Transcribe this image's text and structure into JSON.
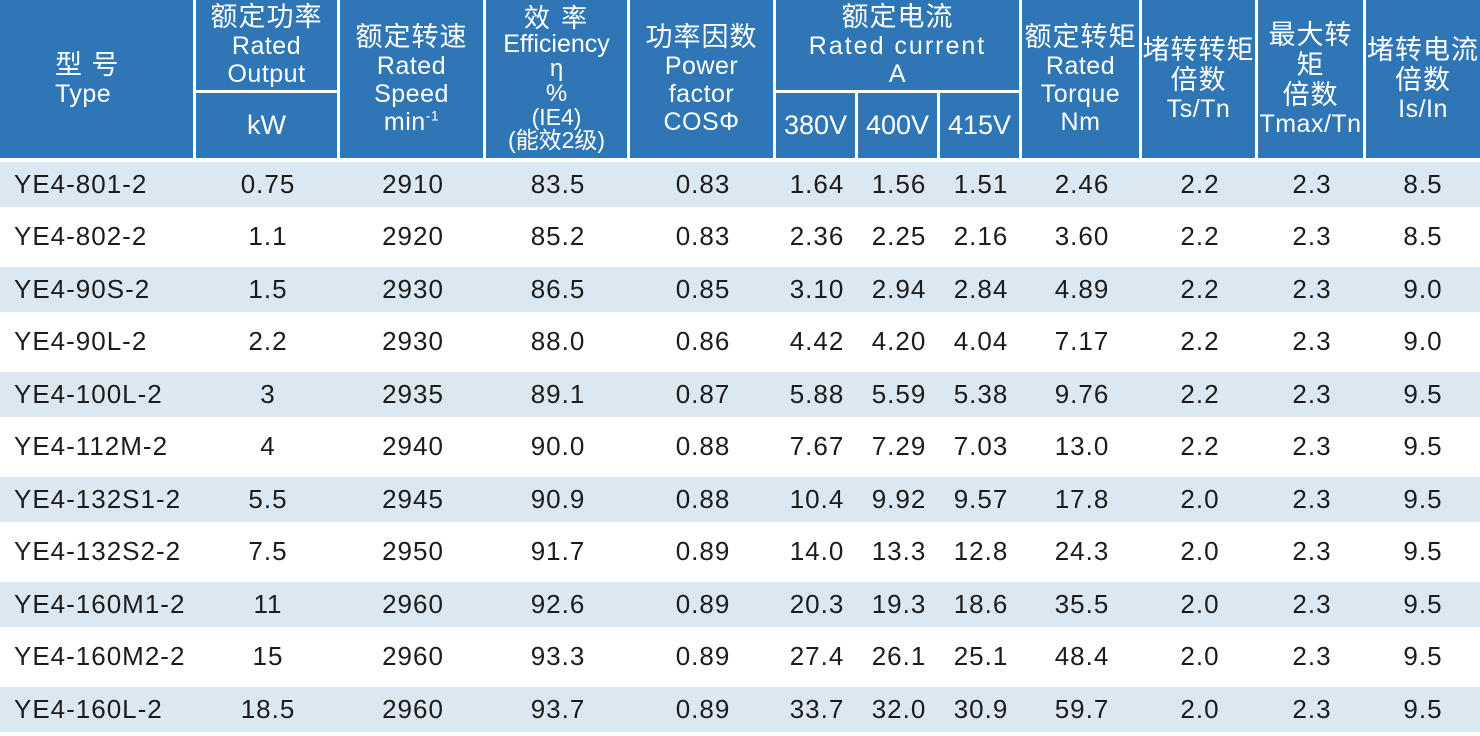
{
  "colors": {
    "header_bg": "#2E76B5",
    "header_text": "#FFFFFF",
    "stripe_bg": "#DBE7F1",
    "row_bg": "#FFFFFF",
    "body_text": "#1C1C1C"
  },
  "header": {
    "type_zh": "型 号",
    "type_en": "Type",
    "output_zh": "额定功率",
    "output_en1": "Rated",
    "output_en2": "Output",
    "output_unit": "kW",
    "speed_zh": "额定转速",
    "speed_en1": "Rated",
    "speed_en2": "Speed",
    "speed_unit_base": "min",
    "speed_unit_sup": "-1",
    "eff_zh": "效 率",
    "eff_en": "Efficiency",
    "eff_symbol": "η",
    "eff_percent": "%",
    "eff_note1": "(IE4)",
    "eff_note2": "(能效2级)",
    "pf_zh": "功率因数",
    "pf_en1": "Power",
    "pf_en2": "factor",
    "pf_symbol": "COSΦ",
    "current_zh": "额定电流",
    "current_en": "Rated current",
    "current_unit": "A",
    "current_v1": "380V",
    "current_v2": "400V",
    "current_v3": "415V",
    "torque_zh": "额定转矩",
    "torque_en1": "Rated",
    "torque_en2": "Torque",
    "torque_unit": "Nm",
    "lrt_zh1": "堵转转矩",
    "lrt_zh2": "倍数",
    "lrt_en": "Ts/Tn",
    "maxt_zh1": "最大转矩",
    "maxt_zh2": "倍数",
    "maxt_en": "Tmax/Tn",
    "lrc_zh1": "堵转电流",
    "lrc_zh2": "倍数",
    "lrc_en": "Is/In"
  },
  "rows": [
    [
      "YE4-801-2",
      "0.75",
      "2910",
      "83.5",
      "0.83",
      "1.64",
      "1.56",
      "1.51",
      "2.46",
      "2.2",
      "2.3",
      "8.5"
    ],
    [
      "YE4-802-2",
      "1.1",
      "2920",
      "85.2",
      "0.83",
      "2.36",
      "2.25",
      "2.16",
      "3.60",
      "2.2",
      "2.3",
      "8.5"
    ],
    [
      "YE4-90S-2",
      "1.5",
      "2930",
      "86.5",
      "0.85",
      "3.10",
      "2.94",
      "2.84",
      "4.89",
      "2.2",
      "2.3",
      "9.0"
    ],
    [
      "YE4-90L-2",
      "2.2",
      "2930",
      "88.0",
      "0.86",
      "4.42",
      "4.20",
      "4.04",
      "7.17",
      "2.2",
      "2.3",
      "9.0"
    ],
    [
      "YE4-100L-2",
      "3",
      "2935",
      "89.1",
      "0.87",
      "5.88",
      "5.59",
      "5.38",
      "9.76",
      "2.2",
      "2.3",
      "9.5"
    ],
    [
      "YE4-112M-2",
      "4",
      "2940",
      "90.0",
      "0.88",
      "7.67",
      "7.29",
      "7.03",
      "13.0",
      "2.2",
      "2.3",
      "9.5"
    ],
    [
      "YE4-132S1-2",
      "5.5",
      "2945",
      "90.9",
      "0.88",
      "10.4",
      "9.92",
      "9.57",
      "17.8",
      "2.0",
      "2.3",
      "9.5"
    ],
    [
      "YE4-132S2-2",
      "7.5",
      "2950",
      "91.7",
      "0.89",
      "14.0",
      "13.3",
      "12.8",
      "24.3",
      "2.0",
      "2.3",
      "9.5"
    ],
    [
      "YE4-160M1-2",
      "11",
      "2960",
      "92.6",
      "0.89",
      "20.3",
      "19.3",
      "18.6",
      "35.5",
      "2.0",
      "2.3",
      "9.5"
    ],
    [
      "YE4-160M2-2",
      "15",
      "2960",
      "93.3",
      "0.89",
      "27.4",
      "26.1",
      "25.1",
      "48.4",
      "2.0",
      "2.3",
      "9.5"
    ],
    [
      "YE4-160L-2",
      "18.5",
      "2960",
      "93.7",
      "0.89",
      "33.7",
      "32.0",
      "30.9",
      "59.7",
      "2.0",
      "2.3",
      "9.5"
    ]
  ]
}
